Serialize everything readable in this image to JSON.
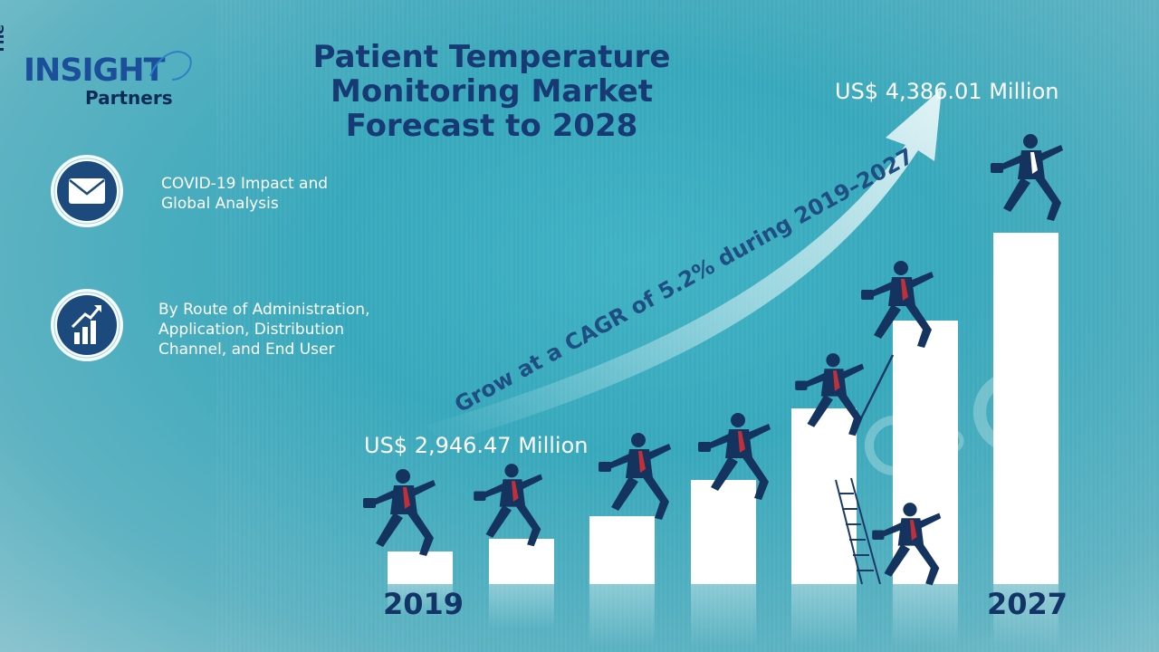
{
  "brand": {
    "logo_the": "The",
    "logo_insight": "INSIGHT",
    "logo_partners": "Partners"
  },
  "title_lines": [
    "Patient Temperature",
    "Monitoring Market",
    "Forecast to 2028"
  ],
  "features": [
    {
      "icon": "envelope-icon",
      "lines": [
        "COVID-19 Impact and",
        "Global Analysis"
      ]
    },
    {
      "icon": "growth-chart-icon",
      "lines": [
        "By Route of Administration,",
        "Application, Distribution",
        "Channel, and End User"
      ]
    }
  ],
  "cagr_text": "Grow at a CAGR of 5.2% during 2019–2027",
  "chart_data": {
    "type": "bar",
    "title": "Patient Temperature Monitoring Market Forecast to 2028",
    "start": {
      "year": "2019",
      "value_label": "US$ 2,946.47 Million",
      "value": 2946.47
    },
    "end": {
      "year": "2027",
      "value_label": "US$ 4,386.01 Million",
      "value": 4386.01
    },
    "unit": "US$ Million",
    "cagr_percent": 5.2,
    "step_values": [
      1,
      1.4,
      2.1,
      3.2,
      5.4,
      8.1,
      10.8
    ],
    "colors": {
      "bar": "#ffffff",
      "figure": "#14335f",
      "tie": "#c0303a",
      "arrow": "#dff3f6"
    }
  }
}
